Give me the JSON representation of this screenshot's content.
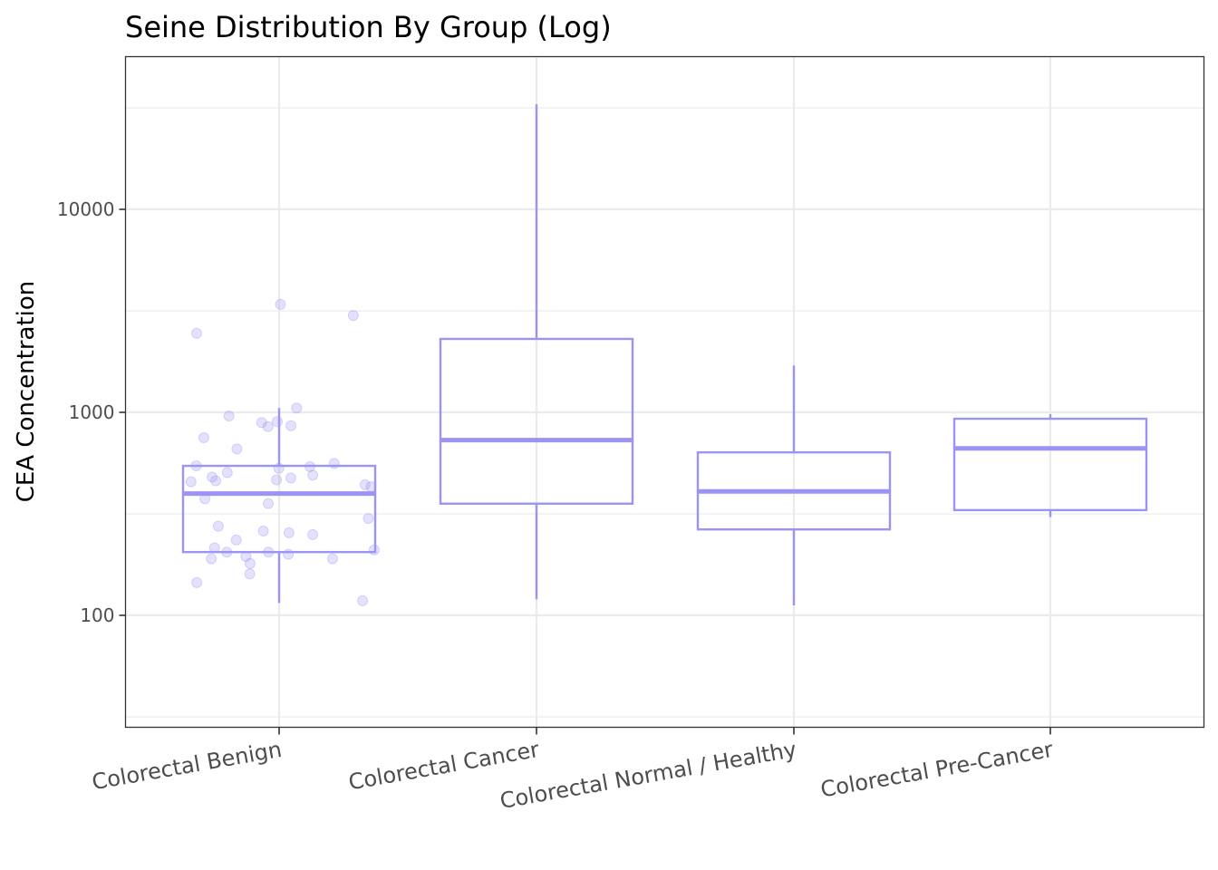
{
  "chart_data": {
    "type": "box",
    "title": "Seine Distribution By Group (Log)",
    "xlabel": "",
    "ylabel": "CEA Concentration",
    "y_scale": "log10",
    "ylim": [
      30,
      55000
    ],
    "y_ticks": [
      100,
      1000,
      10000
    ],
    "y_tick_labels": [
      "100",
      "1000",
      "10000"
    ],
    "grid": true,
    "color": "#9b93f5",
    "categories": [
      "Colorectal Benign",
      "Colorectal Cancer",
      "Colorectal Normal / Healthy",
      "Colorectal Pre-Cancer"
    ],
    "boxes": [
      {
        "category": "Colorectal Benign",
        "whisker_low": 115,
        "q1": 205,
        "median": 398,
        "q3": 545,
        "whisker_high": 1050
      },
      {
        "category": "Colorectal Cancer",
        "whisker_low": 120,
        "q1": 355,
        "median": 730,
        "q3": 2300,
        "whisker_high": 33000
      },
      {
        "category": "Colorectal Normal / Healthy",
        "whisker_low": 112,
        "q1": 265,
        "median": 408,
        "q3": 635,
        "whisker_high": 1700
      },
      {
        "category": "Colorectal Pre-Cancer",
        "whisker_low": 305,
        "q1": 330,
        "median": 665,
        "q3": 930,
        "whisker_high": 980
      }
    ],
    "points": [
      {
        "category": "Colorectal Benign",
        "values": [
          900,
          860,
          750,
          960,
          850,
          3400,
          2450,
          3000,
          1050,
          890,
          660,
          560,
          540,
          545,
          530,
          505,
          490,
          480,
          475,
          465,
          460,
          455,
          440,
          430,
          375,
          355,
          300,
          275,
          260,
          255,
          250,
          235,
          215,
          210,
          205,
          205,
          200,
          195,
          190,
          190,
          180,
          160,
          145,
          118
        ]
      }
    ]
  }
}
